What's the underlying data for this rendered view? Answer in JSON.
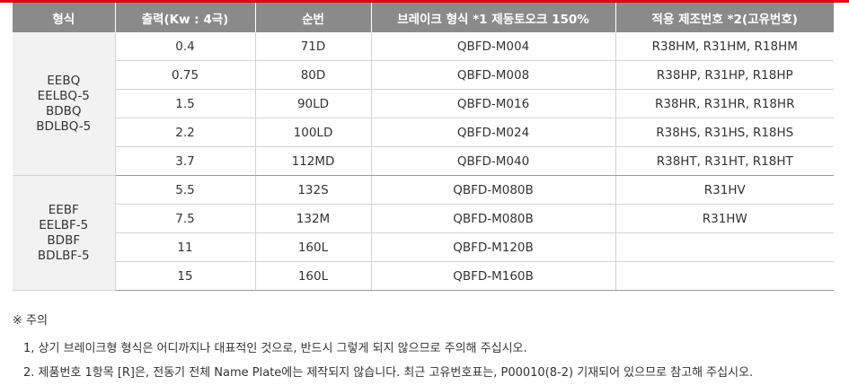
{
  "table": {
    "headers": [
      "형식",
      "출력(Kw : 4극)",
      "순번",
      "브레이크 형식 *1 제동토오크 150%",
      "적용 제조번호 *2(고유번호)"
    ],
    "groups": [
      {
        "types": [
          "EEBQ",
          "EELBQ-5",
          "BDBQ",
          "BDLBQ-5"
        ],
        "rows": [
          {
            "output": "0.4",
            "seq": "71D",
            "brake": "QBFD-M004",
            "serial": "R38HM, R31HM, R18HM"
          },
          {
            "output": "0.75",
            "seq": "80D",
            "brake": "QBFD-M008",
            "serial": "R38HP, R31HP, R18HP"
          },
          {
            "output": "1.5",
            "seq": "90LD",
            "brake": "QBFD-M016",
            "serial": "R38HR, R31HR, R18HR"
          },
          {
            "output": "2.2",
            "seq": "100LD",
            "brake": "QBFD-M024",
            "serial": "R38HS, R31HS, R18HS"
          },
          {
            "output": "3.7",
            "seq": "112MD",
            "brake": "QBFD-M040",
            "serial": "R38HT, R31HT, R18HT"
          }
        ]
      },
      {
        "types": [
          "EEBF",
          "EELBF-5",
          "BDBF",
          "BDLBF-5"
        ],
        "rows": [
          {
            "output": "5.5",
            "seq": "132S",
            "brake": "QBFD-M080B",
            "serial": "R31HV"
          },
          {
            "output": "7.5",
            "seq": "132M",
            "brake": "QBFD-M080B",
            "serial": "R31HW"
          },
          {
            "output": "11",
            "seq": "160L",
            "brake": "QBFD-M120B",
            "serial": ""
          },
          {
            "output": "15",
            "seq": "160L",
            "brake": "QBFD-M160B",
            "serial": ""
          }
        ]
      }
    ]
  },
  "notes": {
    "title": "※ 주의",
    "items": [
      "1, 상기 브레이크형 형식은 어디까지나 대표적인 것으로, 반드시 그렇게 되지 않으므로 주의해 주십시오.",
      "2. 제품번호 1항목 [R]은, 전동기 전체 Name Plate에는 제작되지 않습니다. 최근 고유번호표는, P00010(8-2) 기재되어 있으므로 참고해 주십시오."
    ]
  },
  "colors": {
    "accent": "#e60012",
    "header_bg": "#8a8a8a",
    "group_bg": "#f2f2f2"
  }
}
